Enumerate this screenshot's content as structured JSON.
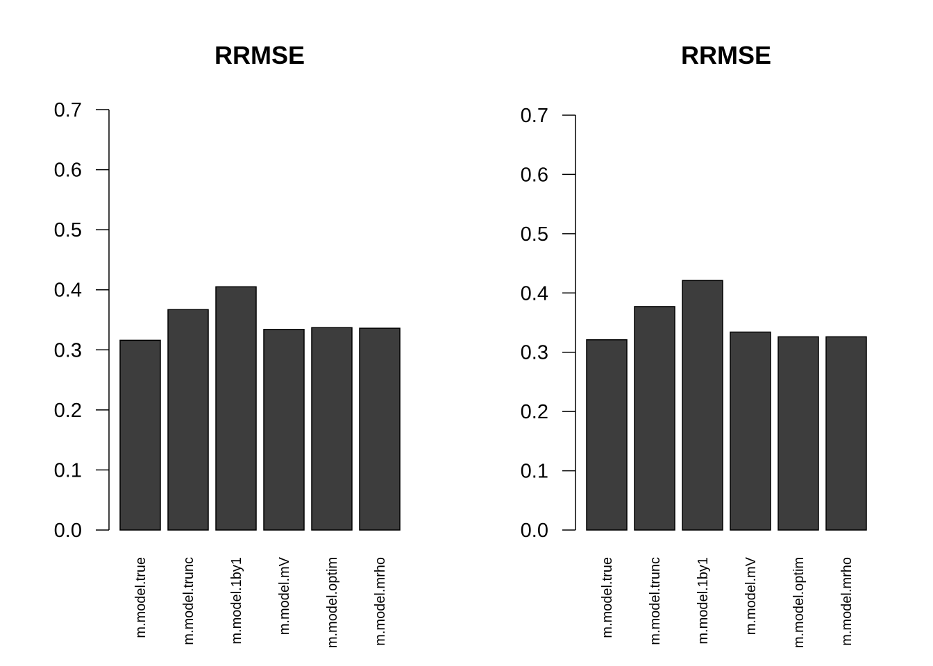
{
  "chart_data": [
    {
      "type": "bar",
      "title": "RRMSE",
      "categories": [
        "m.model.true",
        "m.model.trunc",
        "m.model.1by1",
        "m.model.mV",
        "m.model.optim",
        "m.model.mrho"
      ],
      "values": [
        0.316,
        0.367,
        0.405,
        0.334,
        0.337,
        0.336
      ],
      "yticks": [
        "0.0",
        "0.1",
        "0.2",
        "0.3",
        "0.4",
        "0.5",
        "0.6",
        "0.7"
      ],
      "ylim": [
        0,
        0.7
      ],
      "xlabel": "",
      "ylabel": "",
      "bar_color": "#3d3d3d",
      "grid": false
    },
    {
      "type": "bar",
      "title": "RRMSE",
      "categories": [
        "m.model.true",
        "m.model.trunc",
        "m.model.1by1",
        "m.model.mV",
        "m.model.optim",
        "m.model.mrho"
      ],
      "values": [
        0.321,
        0.377,
        0.421,
        0.334,
        0.326,
        0.326
      ],
      "yticks": [
        "0.0",
        "0.1",
        "0.2",
        "0.3",
        "0.4",
        "0.5",
        "0.6",
        "0.7"
      ],
      "ylim": [
        0,
        0.7
      ],
      "xlabel": "",
      "ylabel": "",
      "bar_color": "#3d3d3d",
      "grid": false
    }
  ]
}
